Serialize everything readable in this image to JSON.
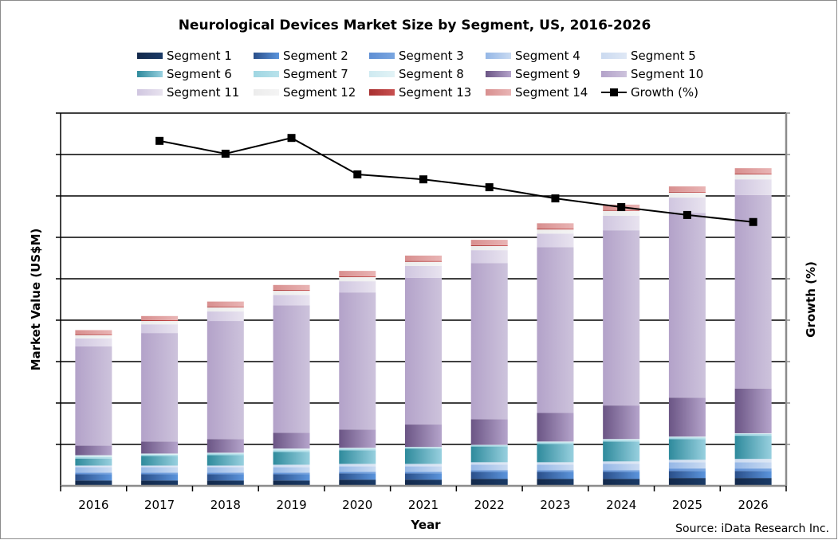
{
  "chart_data": {
    "type": "bar",
    "stacked": true,
    "title": "Neurological Devices Market Size by Segment, US, 2016-2026",
    "xlabel": "Year",
    "ylabel": "Market Value (US$M)",
    "y2label": "Growth (%)",
    "source": "Source: iData Research Inc.",
    "grid": true,
    "legend_position": "top",
    "y_tick_labels_shown": false,
    "ylim": [
      0,
      9
    ],
    "categories": [
      "2016",
      "2017",
      "2018",
      "2019",
      "2020",
      "2021",
      "2022",
      "2023",
      "2024",
      "2025",
      "2026"
    ],
    "series": [
      {
        "name": "Segment 1",
        "color": "#13294b",
        "values": [
          0.13,
          0.13,
          0.13,
          0.13,
          0.15,
          0.15,
          0.17,
          0.17,
          0.17,
          0.19,
          0.19
        ]
      },
      {
        "name": "Segment 2",
        "color": "#4a7cc4",
        "values": [
          0.15,
          0.15,
          0.15,
          0.15,
          0.15,
          0.15,
          0.17,
          0.17,
          0.17,
          0.17,
          0.17
        ]
      },
      {
        "name": "Segment 3",
        "color": "#6f9edc",
        "values": [
          0.04,
          0.04,
          0.04,
          0.04,
          0.04,
          0.04,
          0.04,
          0.04,
          0.04,
          0.06,
          0.06
        ]
      },
      {
        "name": "Segment 4",
        "color": "#b2cbee",
        "values": [
          0.13,
          0.13,
          0.13,
          0.13,
          0.13,
          0.13,
          0.13,
          0.13,
          0.15,
          0.15,
          0.15
        ]
      },
      {
        "name": "Segment 5",
        "color": "#d5e2f2",
        "values": [
          0.04,
          0.04,
          0.04,
          0.06,
          0.06,
          0.06,
          0.06,
          0.06,
          0.06,
          0.06,
          0.08
        ]
      },
      {
        "name": "Segment 6",
        "color": "#5fb0c2",
        "values": [
          0.17,
          0.23,
          0.25,
          0.31,
          0.33,
          0.37,
          0.38,
          0.44,
          0.48,
          0.5,
          0.56
        ]
      },
      {
        "name": "Segment 7",
        "color": "#a6dbe6",
        "values": [
          0.04,
          0.03,
          0.04,
          0.04,
          0.04,
          0.03,
          0.03,
          0.04,
          0.04,
          0.04,
          0.04
        ]
      },
      {
        "name": "Segment 8",
        "color": "#d5eef3",
        "values": [
          0.04,
          0.03,
          0.02,
          0.04,
          0.02,
          0.01,
          0.01,
          0.02,
          0.02,
          0.02,
          0.02
        ]
      },
      {
        "name": "Segment 9",
        "color": "#8c78a8",
        "values": [
          0.23,
          0.29,
          0.33,
          0.38,
          0.44,
          0.54,
          0.62,
          0.69,
          0.81,
          0.94,
          1.08
        ]
      },
      {
        "name": "Segment 10",
        "color": "#c0b2d4",
        "values": [
          2.4,
          2.62,
          2.85,
          3.08,
          3.31,
          3.54,
          3.77,
          4.0,
          4.23,
          4.46,
          4.67
        ]
      },
      {
        "name": "Segment 11",
        "color": "#ddd5e8",
        "values": [
          0.19,
          0.21,
          0.23,
          0.25,
          0.27,
          0.29,
          0.31,
          0.33,
          0.35,
          0.37,
          0.38
        ]
      },
      {
        "name": "Segment 12",
        "color": "#f0f0f0",
        "values": [
          0.08,
          0.08,
          0.1,
          0.1,
          0.1,
          0.1,
          0.1,
          0.1,
          0.12,
          0.12,
          0.12
        ]
      },
      {
        "name": "Segment 13",
        "color": "#b84040",
        "values": [
          0.02,
          0.02,
          0.02,
          0.02,
          0.02,
          0.02,
          0.02,
          0.02,
          0.02,
          0.02,
          0.02
        ]
      },
      {
        "name": "Segment 14",
        "color": "#dfa0a0",
        "values": [
          0.1,
          0.1,
          0.12,
          0.12,
          0.13,
          0.13,
          0.13,
          0.13,
          0.13,
          0.13,
          0.13
        ]
      }
    ],
    "gradients": {
      "Segment 1": [
        "#13294b",
        "#1a3a66"
      ],
      "Segment 2": [
        "#2a4f8a",
        "#5b94dc"
      ],
      "Segment 3": [
        "#5f8fd4",
        "#7aa6e0"
      ],
      "Segment 4": [
        "#95b7e6",
        "#cadbf2"
      ],
      "Segment 5": [
        "#cbdaf0",
        "#dfe8f5"
      ],
      "Segment 6": [
        "#2e8a9c",
        "#98d0df"
      ],
      "Segment 7": [
        "#9fd6e2",
        "#b9e2eb"
      ],
      "Segment 8": [
        "#cfeaf1",
        "#e2f3f6"
      ],
      "Segment 9": [
        "#6b5585",
        "#b5a4cb"
      ],
      "Segment 10": [
        "#b3a2c9",
        "#cdc3dc"
      ],
      "Segment 11": [
        "#d0c6e0",
        "#e8e3ef"
      ],
      "Segment 12": [
        "#ececec",
        "#f4f4f4"
      ],
      "Segment 13": [
        "#a83030",
        "#c85050"
      ],
      "Segment 14": [
        "#d88f8f",
        "#e9b5b5"
      ]
    },
    "line_series": {
      "name": "Growth (%)",
      "color": "#000000",
      "axis": "right",
      "ylim": [
        0,
        9
      ],
      "x": [
        "2017",
        "2018",
        "2019",
        "2020",
        "2021",
        "2022",
        "2023",
        "2024",
        "2025",
        "2026"
      ],
      "values": [
        8.33,
        8.02,
        8.4,
        7.52,
        7.4,
        7.21,
        6.94,
        6.73,
        6.54,
        6.37
      ]
    }
  }
}
